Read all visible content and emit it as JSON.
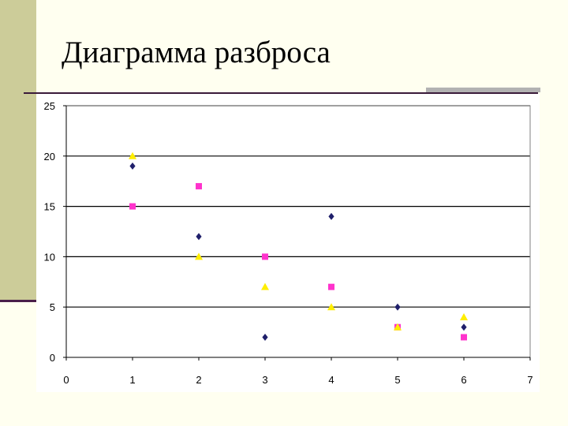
{
  "slide": {
    "title": "Диаграмма разброса"
  },
  "chart_data": {
    "type": "scatter",
    "title": "",
    "xlabel": "",
    "ylabel": "",
    "xlim": [
      0,
      7
    ],
    "ylim": [
      0,
      25
    ],
    "x_ticks": [
      "0",
      "1",
      "2",
      "3",
      "4",
      "5",
      "6",
      "7"
    ],
    "y_ticks": [
      "0",
      "5",
      "10",
      "15",
      "20",
      "25"
    ],
    "grid": "horizontal major gridlines",
    "legend": "none",
    "series": [
      {
        "marker": "diamond",
        "color": "#1f1f6b",
        "x": [
          1,
          2,
          3,
          4,
          5,
          6
        ],
        "y": [
          19,
          12,
          2,
          14,
          5,
          3
        ]
      },
      {
        "marker": "square",
        "color": "#ff33cc",
        "x": [
          1,
          2,
          3,
          4,
          5,
          6
        ],
        "y": [
          15,
          17,
          10,
          7,
          3,
          2
        ]
      },
      {
        "marker": "triangle",
        "color": "#ffee00",
        "x": [
          1,
          2,
          3,
          4,
          5,
          6
        ],
        "y": [
          20,
          10,
          7,
          5,
          3,
          4
        ]
      }
    ]
  }
}
